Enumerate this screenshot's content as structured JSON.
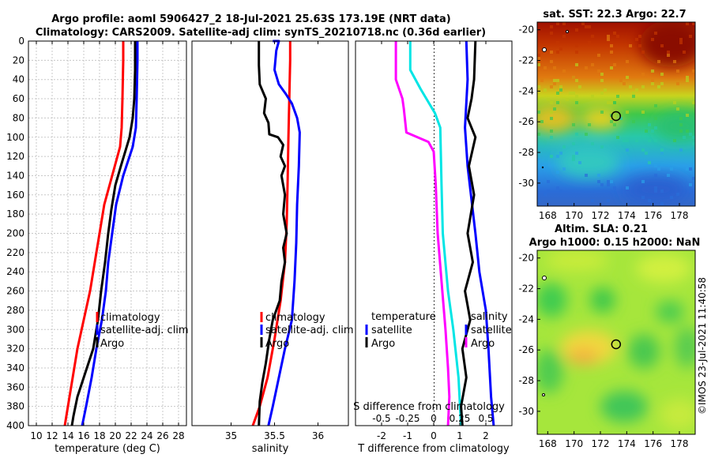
{
  "title": {
    "line1": "Argo profile: aoml 5906427_2 18-Jul-2021 25.63S 173.19E (NRT data)",
    "line2": "Climatology: CARS2009. Satellite-adj clim: synTS_20210718.nc (0.36d earlier)"
  },
  "colors": {
    "climatology": "#ff0000",
    "satellite": "#0000ff",
    "argo": "#000000",
    "temp_diff": "#ff00ff",
    "sal_diff": "#00e5e5"
  },
  "chart_data": [
    {
      "id": "temperature",
      "type": "line",
      "xlabel": "temperature (deg C)",
      "xlim": [
        9,
        29
      ],
      "xticks": [
        10,
        12,
        14,
        16,
        18,
        20,
        22,
        24,
        26,
        28
      ],
      "ylim": [
        0,
        400
      ],
      "yticks": [
        0,
        20,
        40,
        60,
        80,
        100,
        120,
        140,
        160,
        180,
        200,
        220,
        240,
        260,
        280,
        300,
        320,
        340,
        360,
        380,
        400
      ],
      "grid": true,
      "legend": [
        "climatology",
        "satellite-adj. clim",
        "Argo"
      ],
      "series": [
        {
          "name": "climatology",
          "color": "#ff0000",
          "points": [
            [
              21.0,
              0
            ],
            [
              21.0,
              20
            ],
            [
              20.9,
              60
            ],
            [
              20.8,
              90
            ],
            [
              20.6,
              110
            ],
            [
              19.6,
              140
            ],
            [
              18.6,
              170
            ],
            [
              18.0,
              200
            ],
            [
              17.4,
              230
            ],
            [
              16.8,
              260
            ],
            [
              16.0,
              290
            ],
            [
              15.2,
              320
            ],
            [
              14.6,
              350
            ],
            [
              14.0,
              380
            ],
            [
              13.6,
              400
            ]
          ]
        },
        {
          "name": "satellite-adj. clim",
          "color": "#0000ff",
          "points": [
            [
              22.8,
              0
            ],
            [
              22.8,
              20
            ],
            [
              22.7,
              60
            ],
            [
              22.6,
              90
            ],
            [
              22.2,
              110
            ],
            [
              21.0,
              140
            ],
            [
              20.1,
              170
            ],
            [
              19.6,
              200
            ],
            [
              19.1,
              230
            ],
            [
              18.8,
              260
            ],
            [
              18.3,
              290
            ],
            [
              17.6,
              320
            ],
            [
              17.0,
              350
            ],
            [
              16.3,
              380
            ],
            [
              15.8,
              400
            ]
          ]
        },
        {
          "name": "Argo",
          "color": "#000000",
          "points": [
            [
              22.5,
              0
            ],
            [
              22.5,
              30
            ],
            [
              22.4,
              60
            ],
            [
              22.2,
              80
            ],
            [
              21.8,
              100
            ],
            [
              20.7,
              130
            ],
            [
              20.0,
              150
            ],
            [
              19.5,
              175
            ],
            [
              19.1,
              200
            ],
            [
              18.7,
              230
            ],
            [
              18.2,
              260
            ],
            [
              17.8,
              290
            ],
            [
              17.2,
              320
            ],
            [
              16.2,
              345
            ],
            [
              15.2,
              370
            ],
            [
              14.7,
              390
            ],
            [
              14.5,
              400
            ]
          ]
        }
      ]
    },
    {
      "id": "salinity",
      "type": "line",
      "xlabel": "salinity",
      "xlim": [
        34.55,
        36.35
      ],
      "xticks": [
        35,
        35.5,
        36
      ],
      "ylim": [
        0,
        400
      ],
      "grid": false,
      "legend": [
        "climatology",
        "satellite-adj. clim",
        "Argo"
      ],
      "series": [
        {
          "name": "climatology",
          "color": "#ff0000",
          "points": [
            [
              35.68,
              0
            ],
            [
              35.68,
              20
            ],
            [
              35.67,
              60
            ],
            [
              35.66,
              100
            ],
            [
              35.65,
              150
            ],
            [
              35.64,
              190
            ],
            [
              35.62,
              230
            ],
            [
              35.57,
              270
            ],
            [
              35.5,
              310
            ],
            [
              35.42,
              350
            ],
            [
              35.33,
              380
            ],
            [
              35.25,
              400
            ]
          ]
        },
        {
          "name": "satellite-adj. clim",
          "color": "#0000ff",
          "points": [
            [
              35.48,
              0
            ],
            [
              35.55,
              0
            ],
            [
              35.52,
              10
            ],
            [
              35.5,
              30
            ],
            [
              35.55,
              45
            ],
            [
              35.63,
              55
            ],
            [
              35.7,
              65
            ],
            [
              35.76,
              80
            ],
            [
              35.79,
              95
            ],
            [
              35.78,
              130
            ],
            [
              35.76,
              170
            ],
            [
              35.75,
              210
            ],
            [
              35.73,
              250
            ],
            [
              35.7,
              290
            ],
            [
              35.62,
              320
            ],
            [
              35.55,
              350
            ],
            [
              35.48,
              380
            ],
            [
              35.43,
              400
            ]
          ]
        },
        {
          "name": "Argo",
          "color": "#000000",
          "points": [
            [
              35.32,
              0
            ],
            [
              35.32,
              25
            ],
            [
              35.33,
              45
            ],
            [
              35.4,
              60
            ],
            [
              35.38,
              75
            ],
            [
              35.43,
              85
            ],
            [
              35.44,
              97
            ],
            [
              35.54,
              100
            ],
            [
              35.6,
              108
            ],
            [
              35.57,
              120
            ],
            [
              35.62,
              130
            ],
            [
              35.58,
              140
            ],
            [
              35.62,
              160
            ],
            [
              35.6,
              180
            ],
            [
              35.64,
              200
            ],
            [
              35.6,
              215
            ],
            [
              35.62,
              230
            ],
            [
              35.58,
              250
            ],
            [
              35.56,
              270
            ],
            [
              35.48,
              290
            ],
            [
              35.44,
              310
            ],
            [
              35.4,
              335
            ],
            [
              35.36,
              355
            ],
            [
              35.33,
              375
            ],
            [
              35.32,
              400
            ]
          ]
        }
      ]
    },
    {
      "id": "difference",
      "type": "line",
      "xlabel": "T difference from climatology",
      "xlabel2": "S difference from climatology",
      "xlim": [
        -3,
        3
      ],
      "xticks": [
        -2,
        -1,
        0,
        1,
        2
      ],
      "xticks2": [
        -0.5,
        -0.25,
        0,
        0.25,
        0.5
      ],
      "xticks2_labels": [
        "-0.5",
        "-0.25",
        "0",
        "0.25",
        "0.5"
      ],
      "ylim": [
        0,
        400
      ],
      "grid": false,
      "legend_left": [
        "temperature",
        "satellite",
        "Argo"
      ],
      "legend_right": [
        "salinity",
        "satellite",
        "Argo"
      ],
      "series": [
        {
          "name": "temperature Argo",
          "color": "#ff00ff",
          "points": [
            [
              -1.45,
              0
            ],
            [
              -1.45,
              40
            ],
            [
              -1.2,
              60
            ],
            [
              -1.15,
              70
            ],
            [
              -1.05,
              95
            ],
            [
              -0.2,
              105
            ],
            [
              0.0,
              115
            ],
            [
              0.08,
              150
            ],
            [
              0.15,
              200
            ],
            [
              0.3,
              250
            ],
            [
              0.45,
              300
            ],
            [
              0.55,
              340
            ],
            [
              0.6,
              370
            ],
            [
              0.55,
              400
            ]
          ]
        },
        {
          "name": "salinity Argo",
          "color": "#00e5e5",
          "points": [
            [
              -0.9,
              0
            ],
            [
              -0.9,
              30
            ],
            [
              -0.5,
              50
            ],
            [
              0.05,
              75
            ],
            [
              0.25,
              90
            ],
            [
              0.3,
              150
            ],
            [
              0.35,
              200
            ],
            [
              0.55,
              260
            ],
            [
              0.75,
              300
            ],
            [
              0.95,
              350
            ],
            [
              1.05,
              400
            ]
          ]
        },
        {
          "name": "satellite",
          "color": "#0000ff",
          "points": [
            [
              1.25,
              0
            ],
            [
              1.3,
              40
            ],
            [
              1.2,
              90
            ],
            [
              1.3,
              130
            ],
            [
              1.6,
              200
            ],
            [
              1.75,
              240
            ],
            [
              2.0,
              280
            ],
            [
              2.1,
              320
            ],
            [
              2.2,
              370
            ],
            [
              2.3,
              400
            ]
          ]
        },
        {
          "name": "Argo",
          "color": "#000000",
          "points": [
            [
              1.6,
              0
            ],
            [
              1.55,
              40
            ],
            [
              1.45,
              60
            ],
            [
              1.3,
              80
            ],
            [
              1.6,
              100
            ],
            [
              1.35,
              130
            ],
            [
              1.55,
              160
            ],
            [
              1.3,
              200
            ],
            [
              1.5,
              230
            ],
            [
              1.2,
              260
            ],
            [
              1.4,
              290
            ],
            [
              1.1,
              320
            ],
            [
              1.25,
              350
            ],
            [
              1.05,
              380
            ],
            [
              1.1,
              400
            ]
          ]
        }
      ]
    },
    {
      "id": "sst_map",
      "type": "heatmap",
      "title": "sat. SST: 22.3 Argo: 22.7",
      "xticks": [
        168,
        170,
        172,
        174,
        176,
        178
      ],
      "yticks": [
        -20,
        -22,
        -24,
        -26,
        -28,
        -30
      ],
      "xlim": [
        167.2,
        179.2
      ],
      "ylim": [
        -31.5,
        -19.5
      ],
      "marker": [
        173.19,
        -25.63
      ]
    },
    {
      "id": "sla_map",
      "type": "heatmap",
      "title_line1": "Altim. SLA: 0.21",
      "title_line2": "Argo h1000: 0.15 h2000: NaN",
      "xticks": [
        168,
        170,
        172,
        174,
        176,
        178
      ],
      "yticks": [
        -20,
        -22,
        -24,
        -26,
        -28,
        -30
      ],
      "xlim": [
        167.2,
        179.2
      ],
      "ylim": [
        -31.5,
        -19.5
      ],
      "marker": [
        173.19,
        -25.63
      ]
    }
  ],
  "credit": "©IMOS 23-Jul-2021 11:40:58"
}
